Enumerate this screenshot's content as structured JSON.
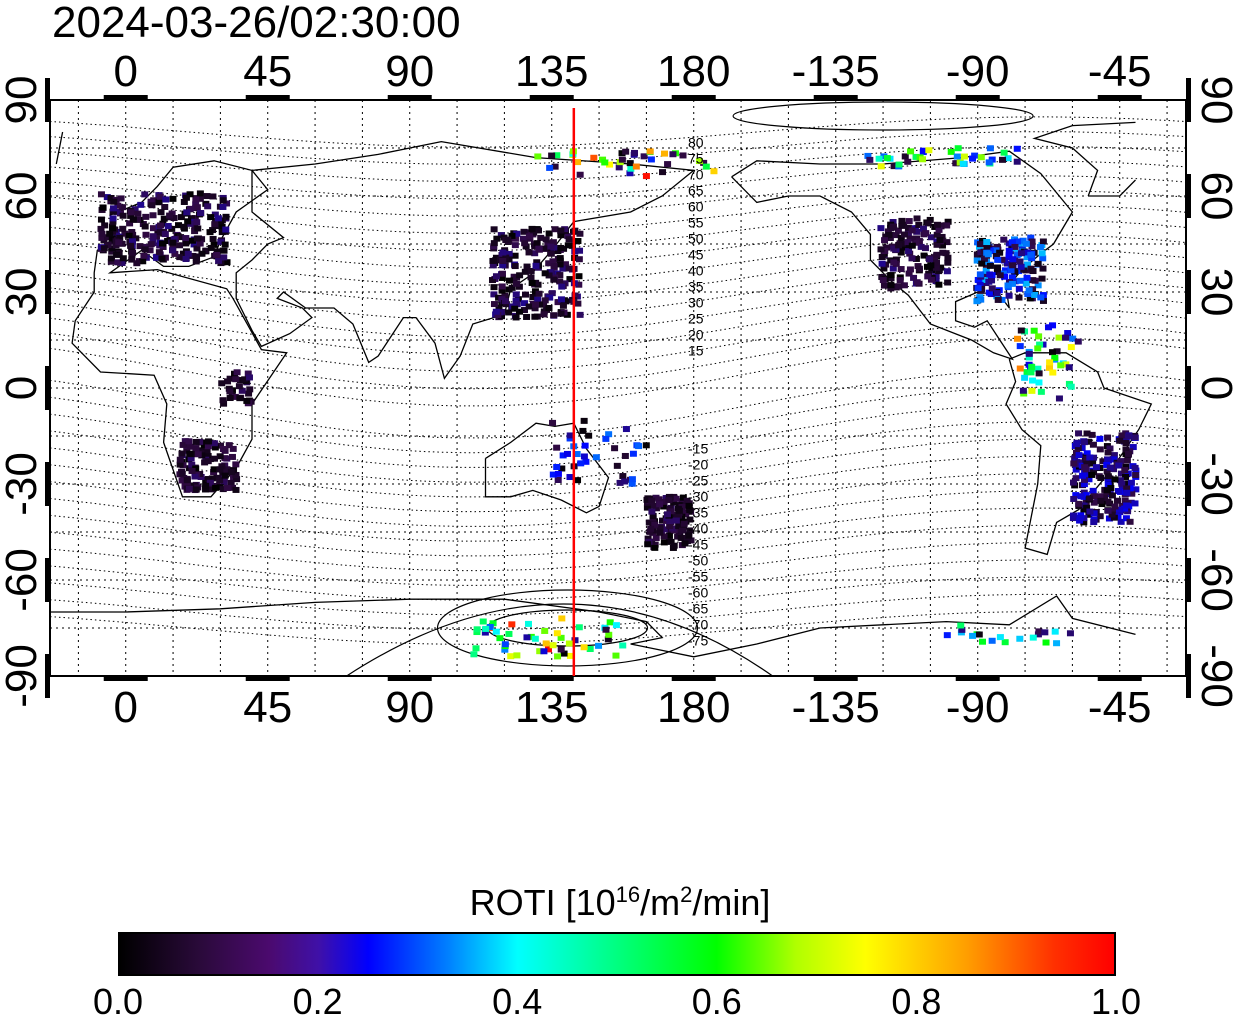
{
  "timestamp": "2024-03-26/02:30:00",
  "map": {
    "top_lon_labels": [
      "0",
      "45",
      "90",
      "135",
      "180",
      "-135",
      "-90",
      "-45"
    ],
    "bottom_lon_labels": [
      "0",
      "45",
      "90",
      "135",
      "180",
      "-135",
      "-90",
      "-45"
    ],
    "left_lat_labels": [
      "90",
      "60",
      "30",
      "0",
      "-30",
      "-60",
      "-90"
    ],
    "right_lat_labels": [
      "90",
      "60",
      "30",
      "0",
      "-30",
      "-60",
      "-90"
    ],
    "contour_labels_north": [
      "80",
      "75",
      "70",
      "65",
      "60",
      "55",
      "50",
      "45",
      "40",
      "35",
      "30",
      "25",
      "20",
      "15"
    ],
    "contour_labels_south": [
      "-15",
      "-20",
      "-25",
      "-30",
      "-35",
      "-40",
      "-45",
      "-50",
      "-55",
      "-60",
      "-65",
      "-70",
      "-75"
    ],
    "marker_longitude": 142,
    "marker_color": "#ff0000"
  },
  "colorbar": {
    "title_prefix": "ROTI  [10",
    "title_sup1": "16",
    "title_mid": "/m",
    "title_sup2": "2",
    "title_suffix": "/min]",
    "tick_labels": [
      "0.0",
      "0.2",
      "0.4",
      "0.6",
      "0.8",
      "1.0"
    ],
    "min": 0.0,
    "max": 1.0
  },
  "colors": {
    "low": "#2a0a3a",
    "mid": "#00ffff",
    "high": "#ff0000"
  }
}
